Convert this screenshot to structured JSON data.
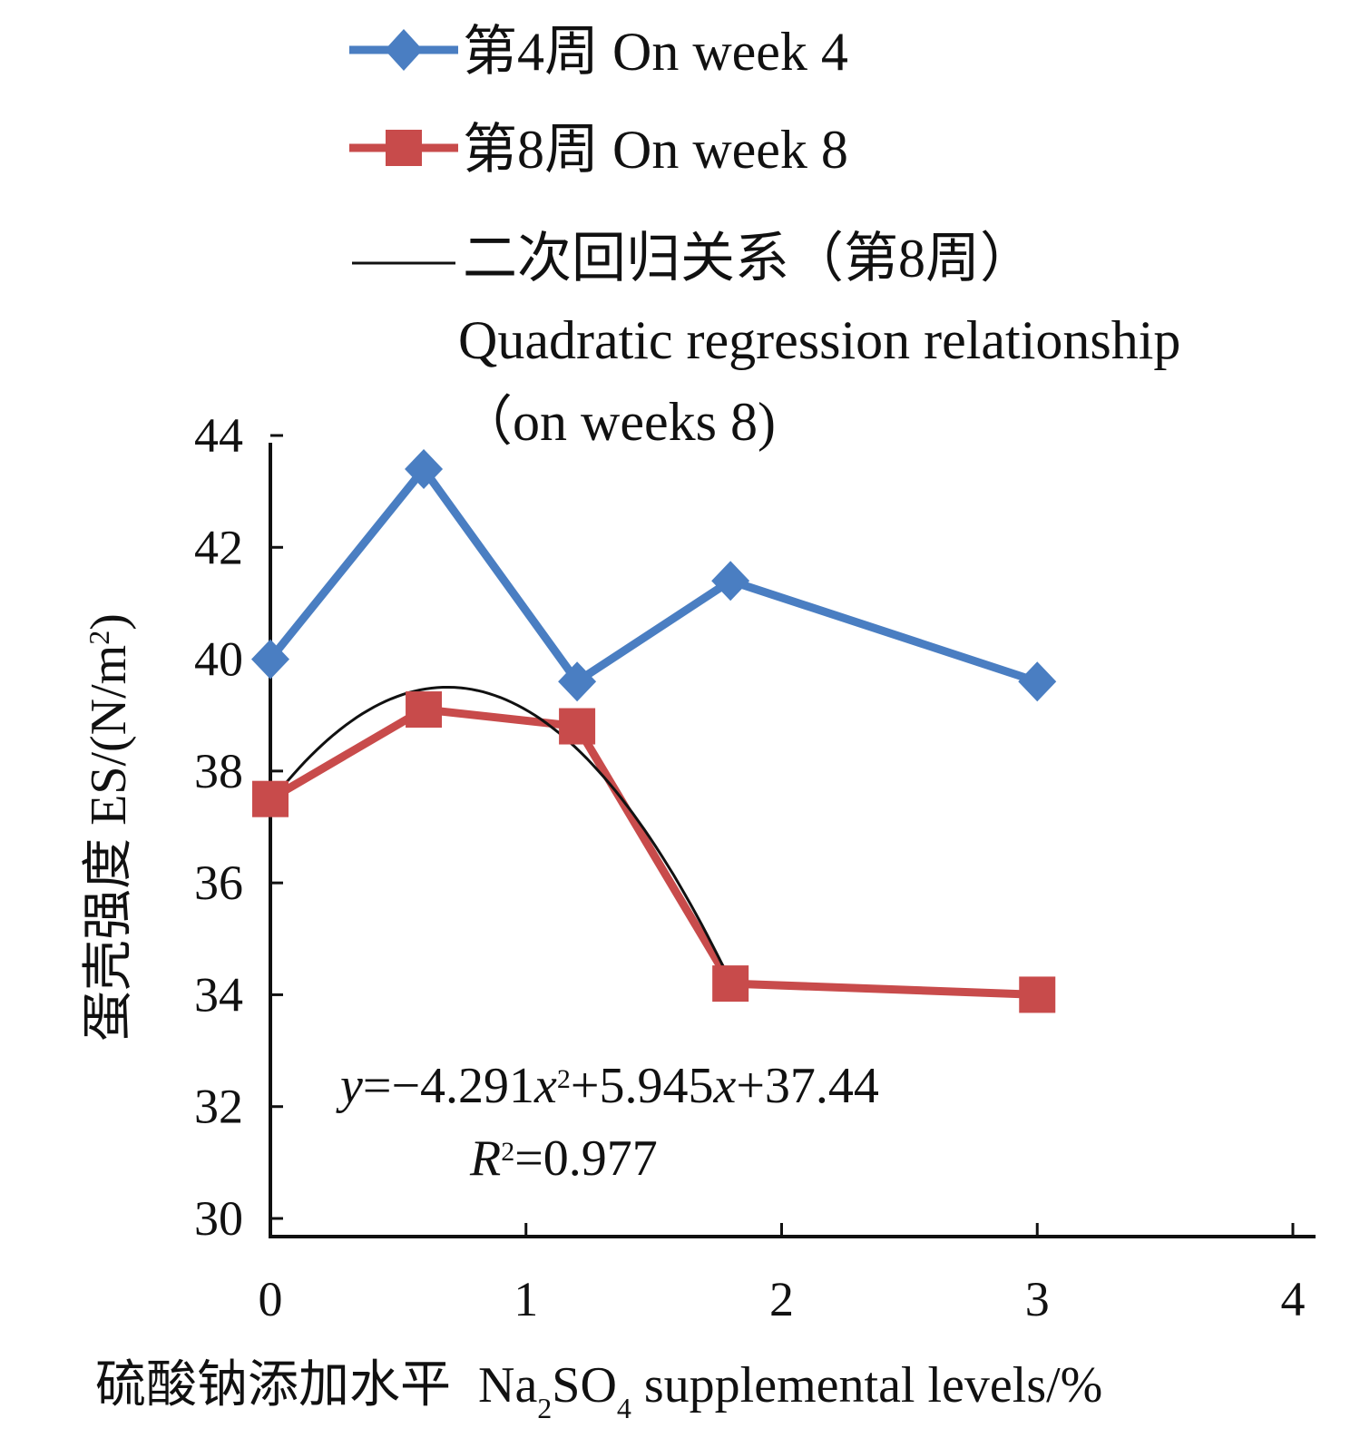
{
  "chart_data": {
    "type": "line",
    "x": [
      0,
      0.6,
      1.2,
      1.8,
      3
    ],
    "series": [
      {
        "name": "第4周 On week 4",
        "values": [
          40.0,
          43.4,
          39.6,
          41.4,
          39.6
        ],
        "color": "#4a7ec2",
        "marker": "diamond"
      },
      {
        "name": "第8周 On week 8",
        "values": [
          37.5,
          39.1,
          38.8,
          34.2,
          34.0
        ],
        "color": "#c84b4b",
        "marker": "square"
      }
    ],
    "regression": {
      "name_line1": "二次回归关系（第8周）",
      "name_line2": "Quadratic regression relationship",
      "name_line3": "（on weeks 8)",
      "color": "#111111",
      "coefficients": {
        "a": -4.291,
        "b": 5.945,
        "c": 37.44
      },
      "x_range": [
        0,
        1.8
      ],
      "equation_y": "y",
      "equation_mid1": "=−4.291",
      "equation_x1": "x",
      "equation_sup": "2",
      "equation_mid2": "+5.945",
      "equation_x2": "x",
      "equation_tail": "+37.44",
      "r2_label": "R",
      "r2_sup": "2",
      "r2_value": "=0.977"
    },
    "xlim": [
      0,
      4
    ],
    "ylim": [
      30,
      44
    ],
    "x_ticks": [
      "0",
      "1",
      "2",
      "3",
      "4"
    ],
    "y_ticks": [
      "30",
      "32",
      "34",
      "36",
      "38",
      "40",
      "42",
      "44"
    ],
    "xlabel_cn": "硫酸钠添加水平",
    "xlabel_en_a": "Na",
    "xlabel_en_sub1": "2",
    "xlabel_en_b": "SO",
    "xlabel_en_sub2": "4",
    "xlabel_en_c": " supplemental levels/%",
    "ylabel_a": "蛋壳强度 ES/(N/m",
    "ylabel_sup": "2",
    "ylabel_b": ")",
    "legend_position": "top"
  }
}
